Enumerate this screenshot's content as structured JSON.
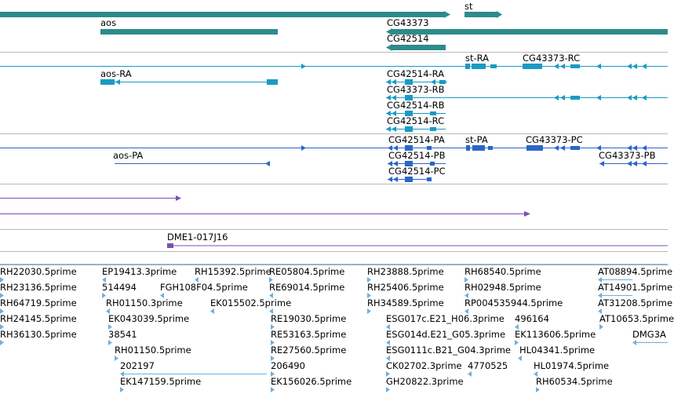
{
  "colors": {
    "gene": "#2e8b8b",
    "transcript": "#1a9bc4",
    "protein": "#2a66c8",
    "clone": "#7b4fb0",
    "est": "#6fb0dd"
  },
  "gene_track": {
    "labels": [
      "st",
      "aos",
      "CG43373",
      "CG42514"
    ]
  },
  "transcript_track": {
    "labels": [
      "st-RA",
      "CG43373-RC",
      "aos-RA",
      "CG42514-RA",
      "CG43373-RB",
      "CG42514-RB",
      "CG42514-RC"
    ]
  },
  "protein_track": {
    "labels": [
      "CG42514-PA",
      "st-PA",
      "CG43373-PC",
      "aos-PA",
      "CG42514-PB",
      "CG43373-PB",
      "CG42514-PC"
    ]
  },
  "clone_track": {
    "labels": [
      "DME1-017J16"
    ]
  },
  "est_track": {
    "labels": [
      "RH22030.5prime",
      "EP19413.3prime",
      "RH15392.5prime",
      "RE05804.5prime",
      "RH23888.5prime",
      "RH68540.5prime",
      "AT08894.5prime",
      "RH23136.5prime",
      "514494",
      "FGH108F04.5prime",
      "RE69014.5prime",
      "RH25406.5prime",
      "RH02948.5prime",
      "AT14901.5prime",
      "RH64719.5prime",
      "RH01150.3prime",
      "EK015502.5prime",
      "RH34589.5prime",
      "RP004535944.5prime",
      "AT31208.5prime",
      "RH24145.5prime",
      "EK043039.5prime",
      "RE19030.5prime",
      "ESG017c.E21_H06.3prime",
      "496164",
      "AT10653.5prime",
      "RH36130.5prime",
      "38541",
      "RE53163.5prime",
      "ESG014d.E21_G05.3prime",
      "EK113606.5prime",
      "DMG3A",
      "RH01150.5prime",
      "RE27560.5prime",
      "ESG0111c.B21_G04.3prime",
      "HL04341.5prime",
      "202197",
      "206490",
      "CK02702.3prime",
      "4770525",
      "HL01974.5prime",
      "EK147159.5prime",
      "EK156026.5prime",
      "GH20822.3prime",
      "RH60534.5prime"
    ]
  }
}
